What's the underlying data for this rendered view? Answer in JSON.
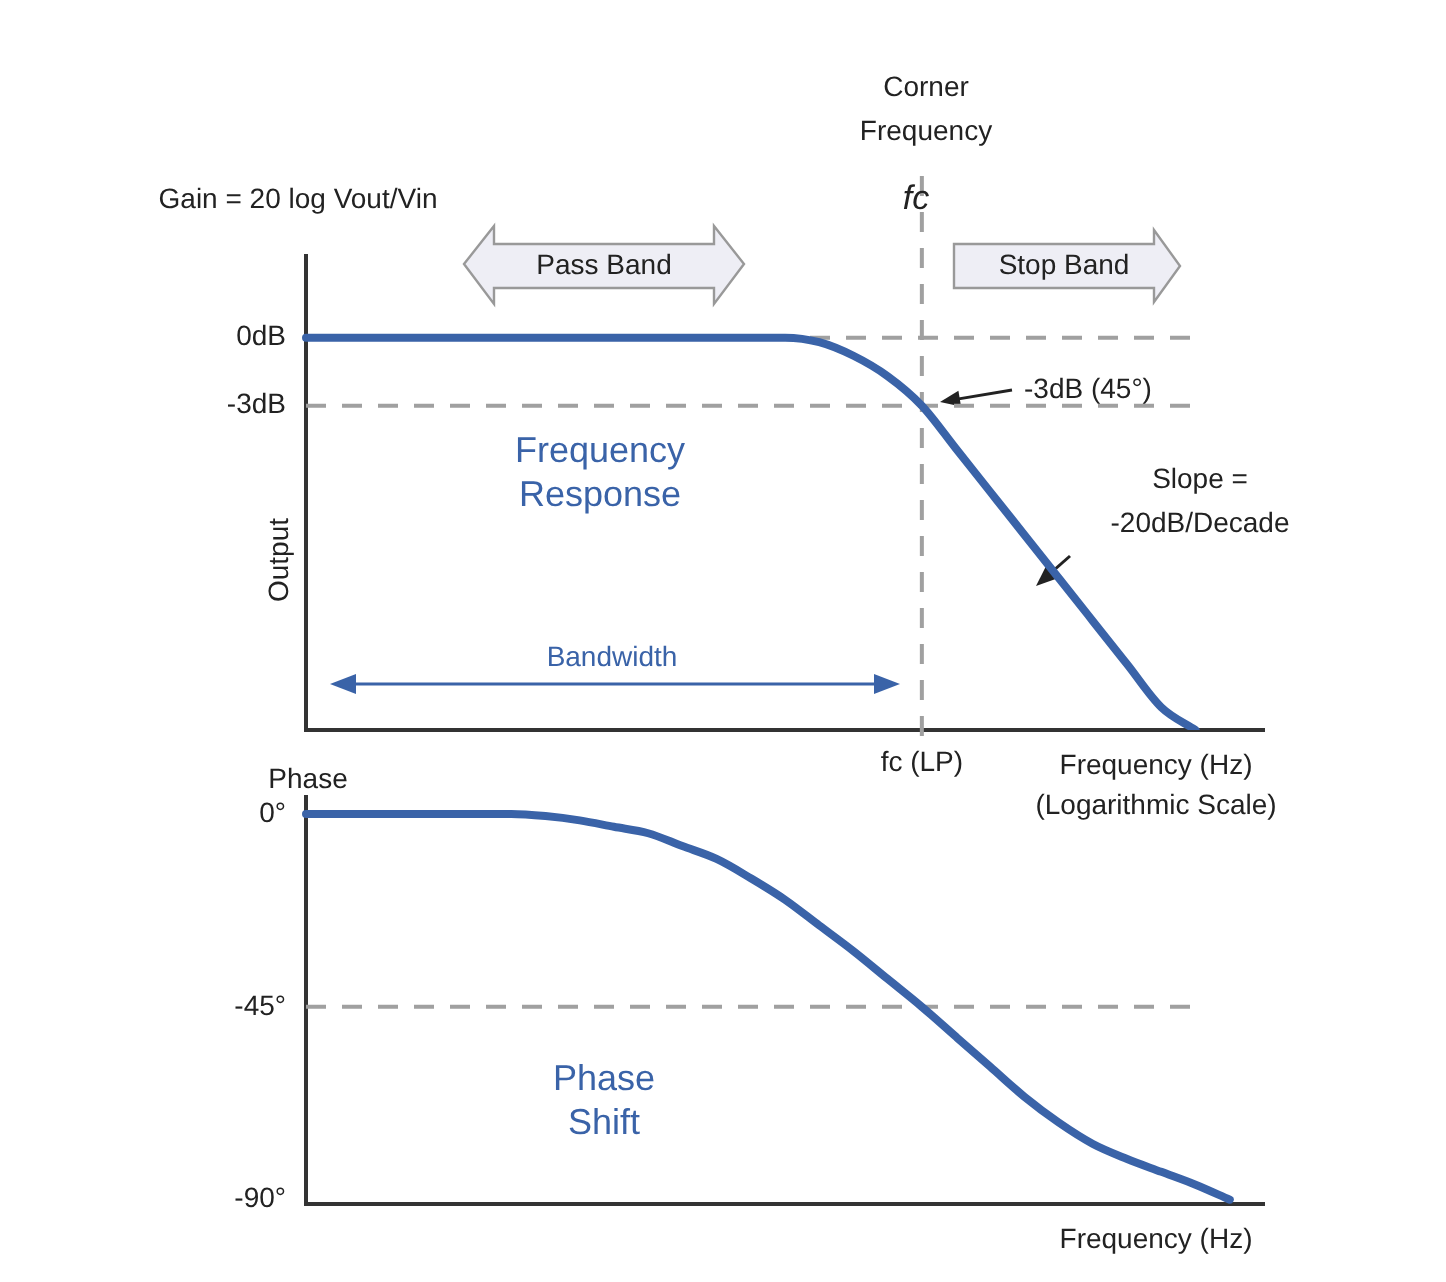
{
  "chart_data": [
    {
      "type": "line",
      "ylabel": "Output",
      "xlabel": "Frequency (Hz) (Logarithmic Scale)",
      "categories": [
        null,
        null,
        null,
        null,
        null,
        null,
        null,
        null,
        null,
        null,
        null,
        null,
        null,
        null,
        null,
        null,
        null,
        null,
        "fc (LP)",
        null,
        null,
        null,
        null,
        null,
        null,
        null,
        null,
        null,
        null
      ],
      "series": [
        {
          "color": "#3a63a8",
          "values": [
            0,
            0,
            0,
            0,
            0,
            0,
            0,
            0,
            0,
            0,
            0,
            0,
            0,
            0,
            0,
            -0.2,
            -0.8,
            -1.7,
            -3,
            -4.9,
            -6.8,
            -8.7,
            -10.6,
            -12.5,
            -14.4,
            -16.3,
            -17.3,
            null,
            null
          ]
        }
      ],
      "ylim": [
        -17.3,
        3.6
      ],
      "yticks": [
        {
          "value": 0,
          "label": "0dB"
        },
        {
          "value": -3,
          "label": "-3dB"
        }
      ],
      "ref_lines": [
        {
          "axis": "y",
          "value": 0,
          "color": "#a0a0a0",
          "line_style": "dashed"
        },
        {
          "axis": "y",
          "value": -3,
          "color": "#a0a0a0",
          "line_style": "dashed"
        },
        {
          "axis": "x",
          "value": "fc (LP)",
          "color": "#a0a0a0",
          "line_style": "dashed"
        }
      ],
      "annotations": [
        "Gain = 20 log Vout/Vin",
        "Corner Frequency",
        "fc",
        "Pass Band",
        "Stop Band",
        "-3dB (45°)",
        "Slope = -20dB/Decade",
        "Frequency Response",
        "Bandwidth"
      ]
    },
    {
      "type": "line",
      "ylabel": "Phase",
      "xlabel": "Frequency (Hz)",
      "tick_labels": "y",
      "categories": [
        null,
        null,
        null,
        null,
        null,
        null,
        null,
        null,
        null,
        null,
        null,
        null,
        null,
        null,
        null,
        null,
        null,
        null,
        null,
        null,
        null,
        null,
        null,
        null,
        null,
        null,
        null,
        null,
        null
      ],
      "series": [
        {
          "color": "#3a63a8",
          "values": [
            0,
            0,
            0,
            0,
            0,
            0,
            0,
            -0.5,
            -1.5,
            -3,
            -4.5,
            -7.5,
            -10.5,
            -15,
            -20,
            -26,
            -32,
            -38.5,
            -45,
            -52,
            -59,
            -66,
            -72,
            -77,
            -80.5,
            -83.5,
            -86.5,
            -90,
            null
          ]
        }
      ],
      "ylim": [
        -91,
        4
      ],
      "yticks": [
        {
          "value": 0,
          "label": "0°"
        },
        {
          "value": -45,
          "label": "-45°"
        },
        {
          "value": -90,
          "label": "-90°"
        }
      ],
      "ref_lines": [
        {
          "axis": "y",
          "value": -45,
          "color": "#a0a0a0",
          "line_style": "dashed"
        }
      ],
      "annotations": [
        "Phase Shift"
      ]
    }
  ]
}
